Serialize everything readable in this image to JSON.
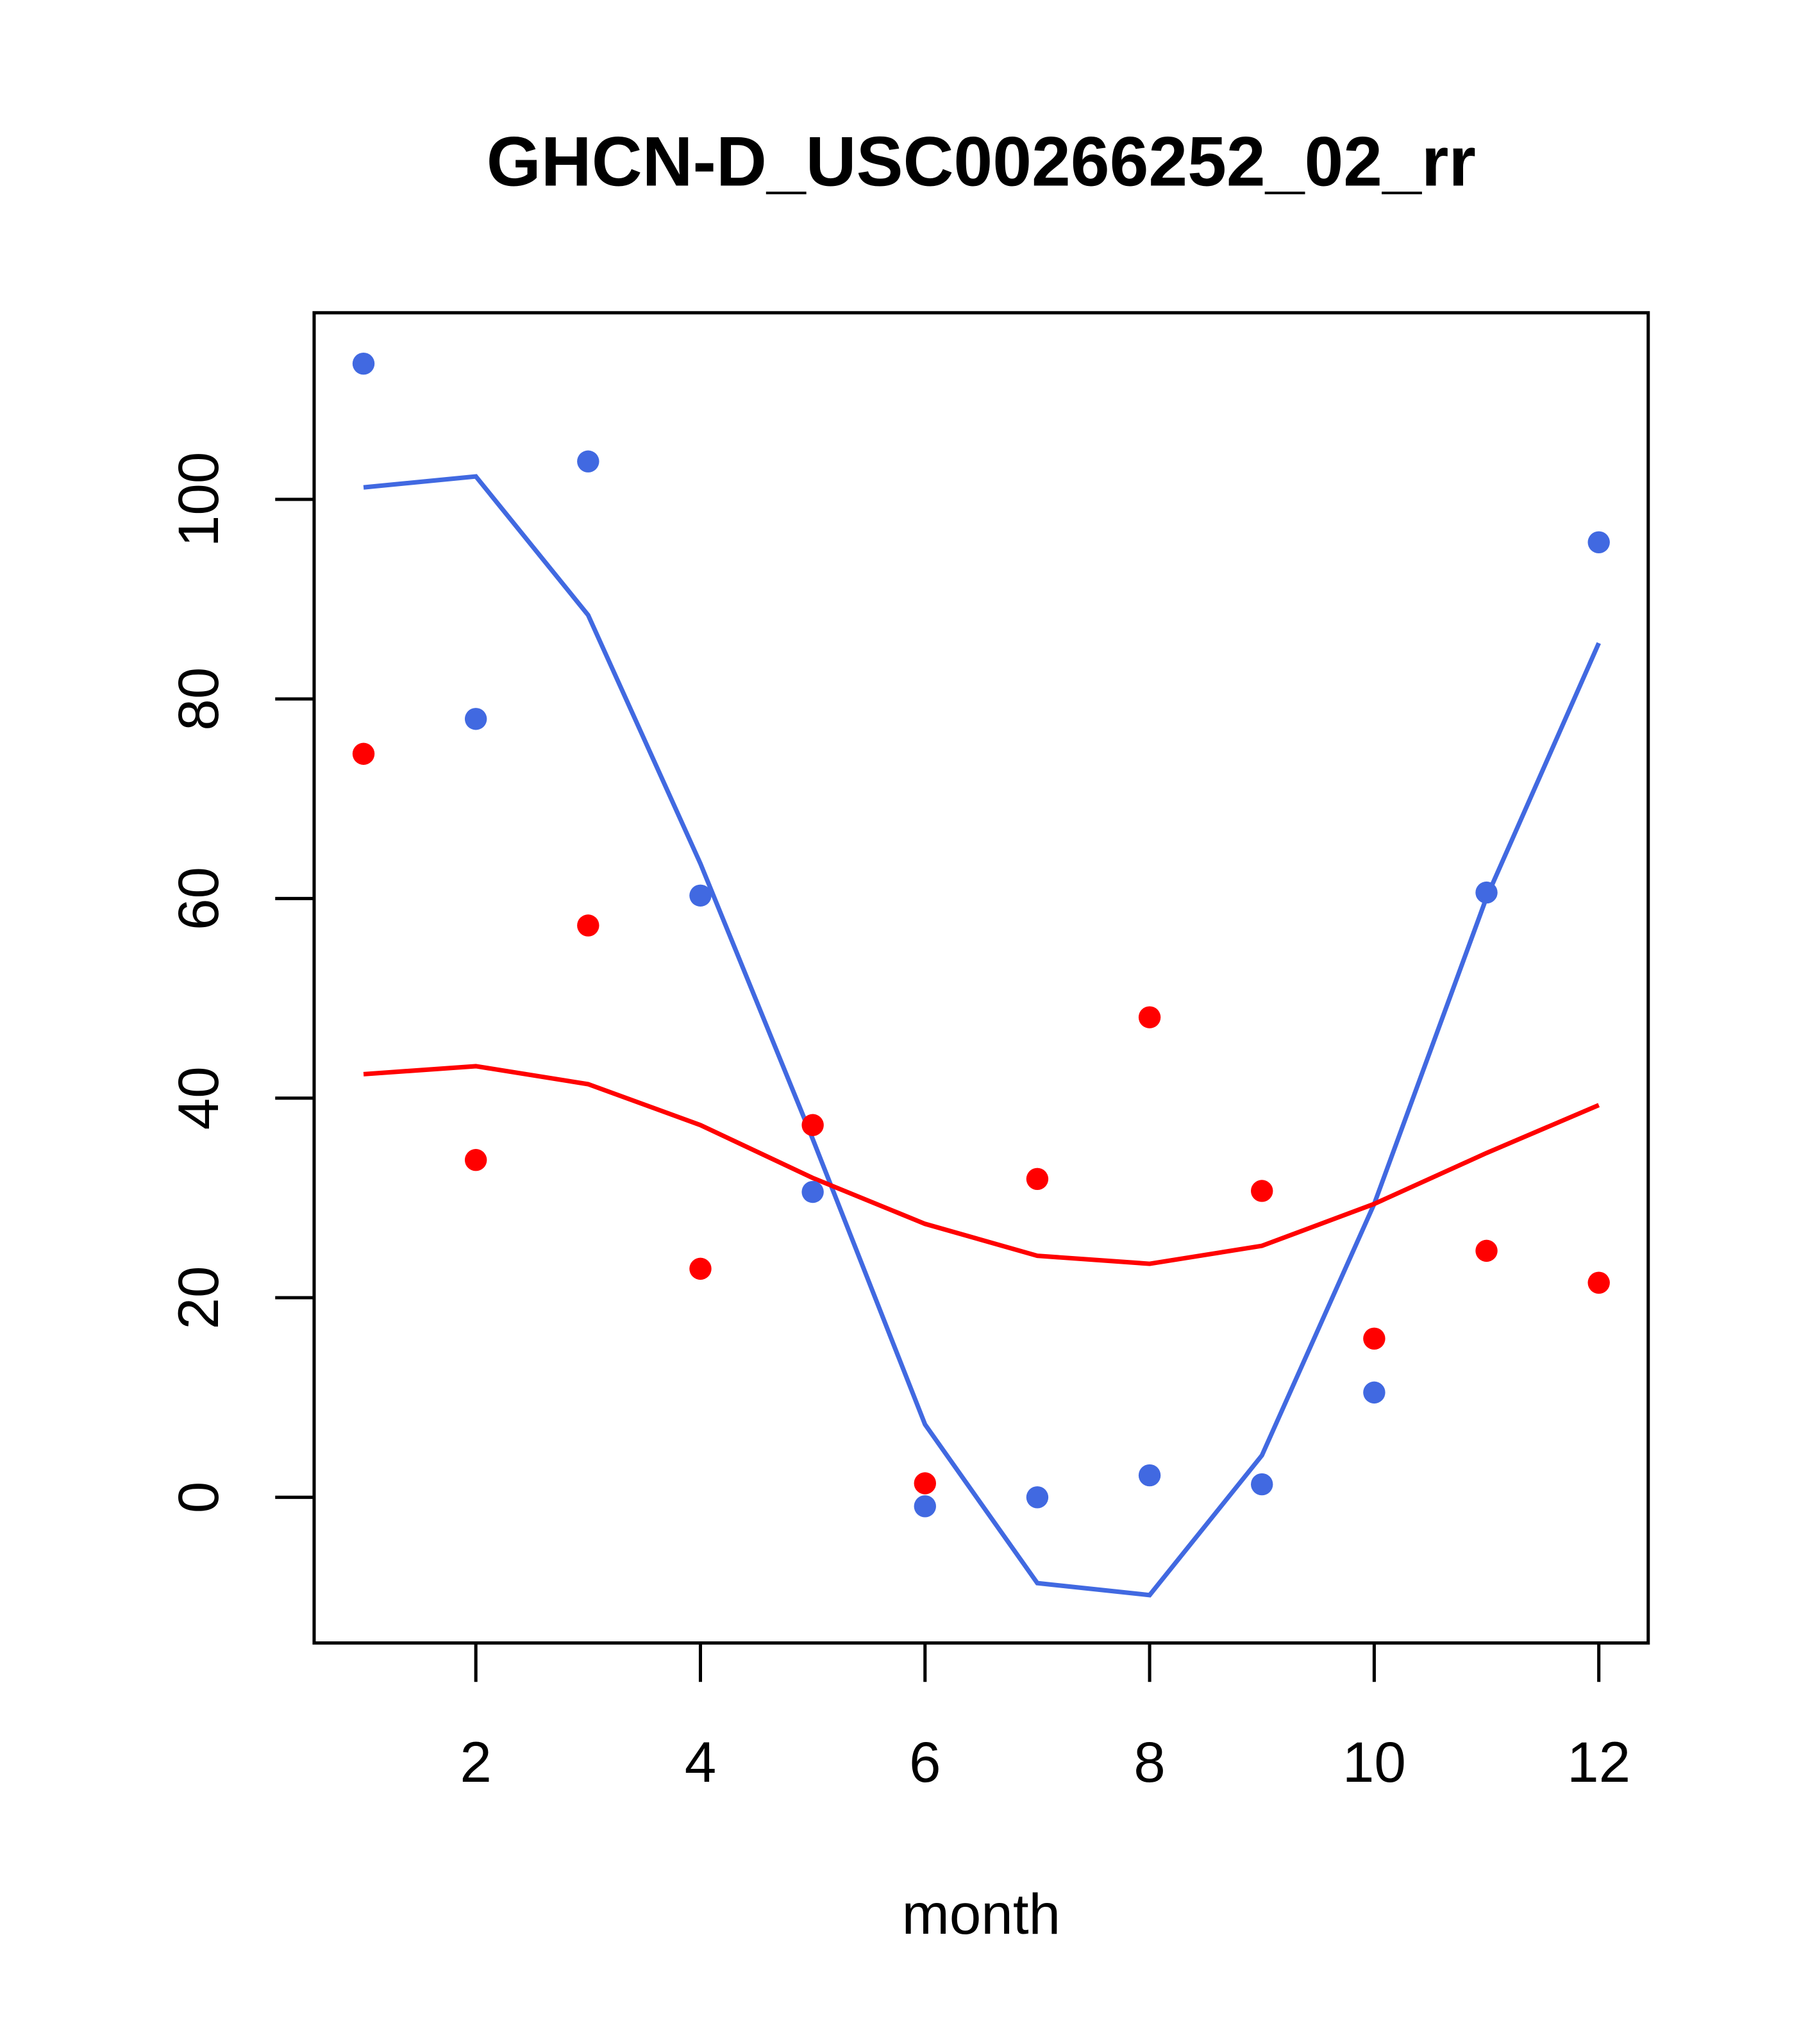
{
  "chart_data": {
    "type": "scatter",
    "title": "GHCN-D_USC00266252_02_rr",
    "xlabel": "month",
    "ylabel": "",
    "xlim": [
      0.56,
      12.44
    ],
    "ylim": [
      -14.6,
      118.7
    ],
    "xticks": [
      2,
      4,
      6,
      8,
      10,
      12
    ],
    "yticks": [
      0,
      20,
      40,
      60,
      80,
      100
    ],
    "grid": false,
    "x": [
      1,
      2,
      3,
      4,
      5,
      6,
      7,
      8,
      9,
      10,
      11,
      12
    ],
    "series": [
      {
        "name": "blue-points",
        "kind": "points",
        "color": "#4169E1",
        "values": [
          113.6,
          78.0,
          103.8,
          60.3,
          30.6,
          -0.9,
          0.0,
          2.2,
          1.3,
          10.5,
          60.6,
          95.7
        ]
      },
      {
        "name": "red-points",
        "kind": "points",
        "color": "#FF0000",
        "values": [
          74.5,
          33.8,
          57.3,
          22.9,
          37.3,
          1.4,
          31.9,
          48.1,
          30.7,
          15.9,
          24.7,
          21.5
        ]
      },
      {
        "name": "blue-line",
        "kind": "line",
        "color": "#4169E1",
        "values": [
          101.2,
          102.3,
          88.4,
          63.5,
          35.9,
          7.3,
          -8.6,
          -9.8,
          4.2,
          29.4,
          60.1,
          85.6
        ]
      },
      {
        "name": "red-line",
        "kind": "line",
        "color": "#FF0000",
        "values": [
          42.4,
          43.2,
          41.4,
          37.3,
          32.0,
          27.4,
          24.2,
          23.4,
          25.2,
          29.4,
          34.5,
          39.3
        ]
      }
    ]
  }
}
